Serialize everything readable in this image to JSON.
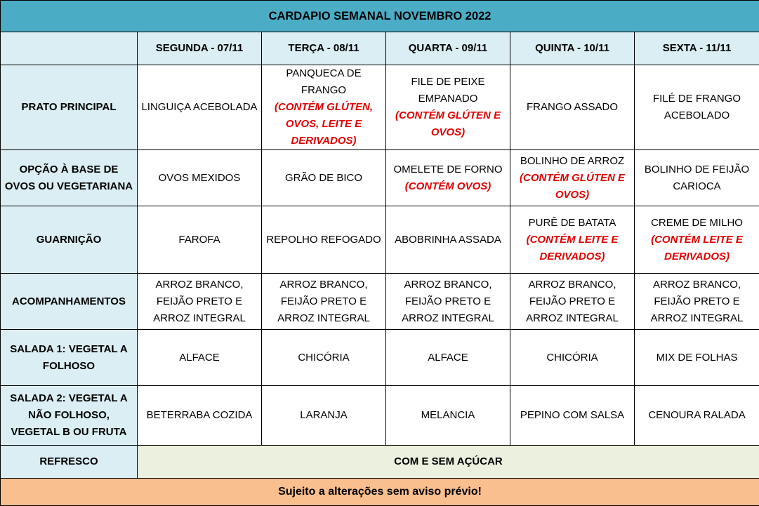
{
  "title": "CARDAPIO SEMANAL NOVEMBRO 2022",
  "days": [
    "SEGUNDA - 07/11",
    "TERÇA - 08/11",
    "QUARTA - 09/11",
    "QUINTA - 10/11",
    "SEXTA - 11/11"
  ],
  "rows": [
    {
      "label": "PRATO PRINCIPAL",
      "cells": [
        {
          "text": "LINGUIÇA ACEBOLADA",
          "allergen": ""
        },
        {
          "text": "PANQUECA DE FRANGO",
          "allergen": "(CONTÉM GLÚTEN, OVOS, LEITE E DERIVADOS)"
        },
        {
          "text": "FILE DE PEIXE EMPANADO",
          "allergen": "(CONTÉM GLÚTEN E OVOS)"
        },
        {
          "text": "FRANGO ASSADO",
          "allergen": ""
        },
        {
          "text": "FILÉ DE FRANGO ACEBOLADO",
          "allergen": ""
        }
      ]
    },
    {
      "label": "OPÇÃO À BASE DE OVOS OU VEGETARIANA",
      "cells": [
        {
          "text": "OVOS MEXIDOS",
          "allergen": ""
        },
        {
          "text": "GRÃO DE BICO",
          "allergen": ""
        },
        {
          "text": "OMELETE DE FORNO",
          "allergen": "(CONTÉM OVOS)"
        },
        {
          "text": "BOLINHO DE ARROZ",
          "allergen": "(CONTÉM GLÚTEN E OVOS)"
        },
        {
          "text": "BOLINHO DE FEIJÃO CARIOCA",
          "allergen": ""
        }
      ]
    },
    {
      "label": "GUARNIÇÃO",
      "cells": [
        {
          "text": "FAROFA",
          "allergen": ""
        },
        {
          "text": "REPOLHO REFOGADO",
          "allergen": ""
        },
        {
          "text": "ABOBRINHA ASSADA",
          "allergen": ""
        },
        {
          "text": "PURÊ DE BATATA",
          "allergen": "(CONTÉM LEITE E DERIVADOS)"
        },
        {
          "text": "CREME DE MILHO",
          "allergen": "(CONTÉM LEITE E DERIVADOS)"
        }
      ]
    },
    {
      "label": "ACOMPANHAMENTOS",
      "cells": [
        {
          "text": "ARROZ BRANCO, FEIJÃO PRETO E ARROZ INTEGRAL",
          "allergen": ""
        },
        {
          "text": "ARROZ BRANCO, FEIJÃO PRETO E ARROZ INTEGRAL",
          "allergen": ""
        },
        {
          "text": "ARROZ BRANCO, FEIJÃO PRETO E ARROZ INTEGRAL",
          "allergen": ""
        },
        {
          "text": "ARROZ BRANCO, FEIJÃO PRETO E ARROZ INTEGRAL",
          "allergen": ""
        },
        {
          "text": "ARROZ BRANCO, FEIJÃO PRETO E ARROZ INTEGRAL",
          "allergen": ""
        }
      ]
    },
    {
      "label": "SALADA 1: VEGETAL A FOLHOSO",
      "cells": [
        {
          "text": "ALFACE",
          "allergen": ""
        },
        {
          "text": "CHICÓRIA",
          "allergen": ""
        },
        {
          "text": "ALFACE",
          "allergen": ""
        },
        {
          "text": "CHICÓRIA",
          "allergen": ""
        },
        {
          "text": "MIX DE FOLHAS",
          "allergen": ""
        }
      ]
    },
    {
      "label": "SALADA 2: VEGETAL A NÃO FOLHOSO, VEGETAL B OU FRUTA",
      "cells": [
        {
          "text": "BETERRABA COZIDA",
          "allergen": ""
        },
        {
          "text": "LARANJA",
          "allergen": ""
        },
        {
          "text": "MELANCIA",
          "allergen": ""
        },
        {
          "text": "PEPINO COM SALSA",
          "allergen": ""
        },
        {
          "text": "CENOURA RALADA",
          "allergen": ""
        }
      ]
    }
  ],
  "refresco": {
    "label": "REFRESCO",
    "value": "COM E SEM AÇÚCAR"
  },
  "footer": "Sujeito a alterações sem aviso prévio!",
  "colors": {
    "title_bg": "#4bacc6",
    "header_bg": "#daeef3",
    "refresco_bg": "#ebf1de",
    "footer_bg": "#fabf8f",
    "allergen": "#e00000"
  }
}
